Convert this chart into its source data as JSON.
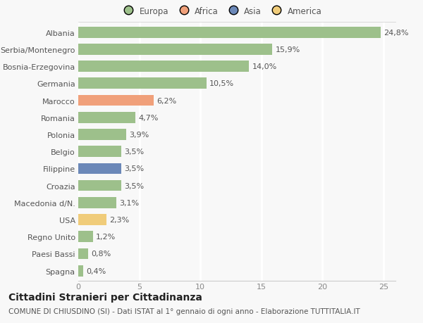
{
  "categories": [
    "Albania",
    "Serbia/Montenegro",
    "Bosnia-Erzegovina",
    "Germania",
    "Marocco",
    "Romania",
    "Polonia",
    "Belgio",
    "Filippine",
    "Croazia",
    "Macedonia d/N.",
    "USA",
    "Regno Unito",
    "Paesi Bassi",
    "Spagna"
  ],
  "values": [
    24.8,
    15.9,
    14.0,
    10.5,
    6.2,
    4.7,
    3.9,
    3.5,
    3.5,
    3.5,
    3.1,
    2.3,
    1.2,
    0.8,
    0.4
  ],
  "labels": [
    "24,8%",
    "15,9%",
    "14,0%",
    "10,5%",
    "6,2%",
    "4,7%",
    "3,9%",
    "3,5%",
    "3,5%",
    "3,5%",
    "3,1%",
    "2,3%",
    "1,2%",
    "0,8%",
    "0,4%"
  ],
  "colors": [
    "#9dc08b",
    "#9dc08b",
    "#9dc08b",
    "#9dc08b",
    "#f0a07a",
    "#9dc08b",
    "#9dc08b",
    "#9dc08b",
    "#6b88b8",
    "#9dc08b",
    "#9dc08b",
    "#f0cc7a",
    "#9dc08b",
    "#9dc08b",
    "#9dc08b"
  ],
  "legend_labels": [
    "Europa",
    "Africa",
    "Asia",
    "America"
  ],
  "legend_colors": [
    "#9dc08b",
    "#f0a07a",
    "#6b88b8",
    "#f0cc7a"
  ],
  "title": "Cittadini Stranieri per Cittadinanza",
  "subtitle": "COMUNE DI CHIUSDINO (SI) - Dati ISTAT al 1° gennaio di ogni anno - Elaborazione TUTTITALIA.IT",
  "xlim": [
    0,
    26
  ],
  "xticks": [
    0,
    5,
    10,
    15,
    20,
    25
  ],
  "background_color": "#f8f8f8",
  "grid_color": "#ffffff",
  "bar_height": 0.65,
  "title_fontsize": 10,
  "subtitle_fontsize": 7.5,
  "label_fontsize": 8,
  "tick_fontsize": 8,
  "legend_fontsize": 8.5
}
